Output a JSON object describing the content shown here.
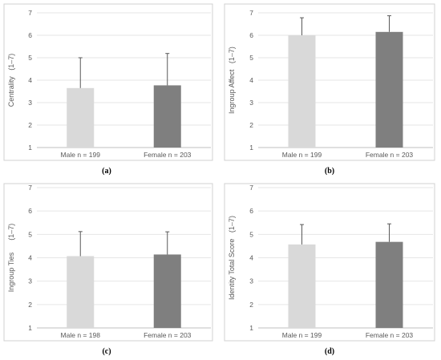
{
  "chart_data": [
    {
      "id": "a",
      "type": "bar",
      "panel_label": "(a)",
      "ylabel": "Centrality   (1–7)",
      "ylim": [
        1,
        7
      ],
      "yticks": [
        1,
        2,
        3,
        4,
        5,
        6,
        7
      ],
      "grid": true,
      "categories": [
        "Male n = 199",
        "Female n = 203"
      ],
      "values": [
        3.65,
        3.77
      ],
      "error_upper": [
        1.35,
        1.42
      ],
      "colors": [
        "#d9d9d9",
        "#7f7f7f"
      ]
    },
    {
      "id": "b",
      "type": "bar",
      "panel_label": "(b)",
      "ylabel": "Ingroup Affect   (1–7)",
      "ylim": [
        1,
        7
      ],
      "yticks": [
        1,
        2,
        3,
        4,
        5,
        6,
        7
      ],
      "grid": true,
      "categories": [
        "Male n = 199",
        "Female n = 203"
      ],
      "values": [
        6.0,
        6.15
      ],
      "error_upper": [
        0.78,
        0.72
      ],
      "colors": [
        "#d9d9d9",
        "#7f7f7f"
      ]
    },
    {
      "id": "c",
      "type": "bar",
      "panel_label": "(c)",
      "ylabel": "Ingroup Ties      (1–7)",
      "ylim": [
        1,
        7
      ],
      "yticks": [
        1,
        2,
        3,
        4,
        5,
        6,
        7
      ],
      "grid": true,
      "categories": [
        "Male n = 198",
        "Female n = 203"
      ],
      "values": [
        4.07,
        4.14
      ],
      "error_upper": [
        1.05,
        0.97
      ],
      "colors": [
        "#d9d9d9",
        "#7f7f7f"
      ]
    },
    {
      "id": "d",
      "type": "bar",
      "panel_label": "(d)",
      "ylabel": "Identity Total Score   (1–7)",
      "ylim": [
        1,
        7
      ],
      "yticks": [
        1,
        2,
        3,
        4,
        5,
        6,
        7
      ],
      "grid": true,
      "categories": [
        "Male n = 199",
        "Female n = 203"
      ],
      "values": [
        4.57,
        4.68
      ],
      "error_upper": [
        0.85,
        0.77
      ],
      "colors": [
        "#d9d9d9",
        "#7f7f7f"
      ]
    }
  ]
}
